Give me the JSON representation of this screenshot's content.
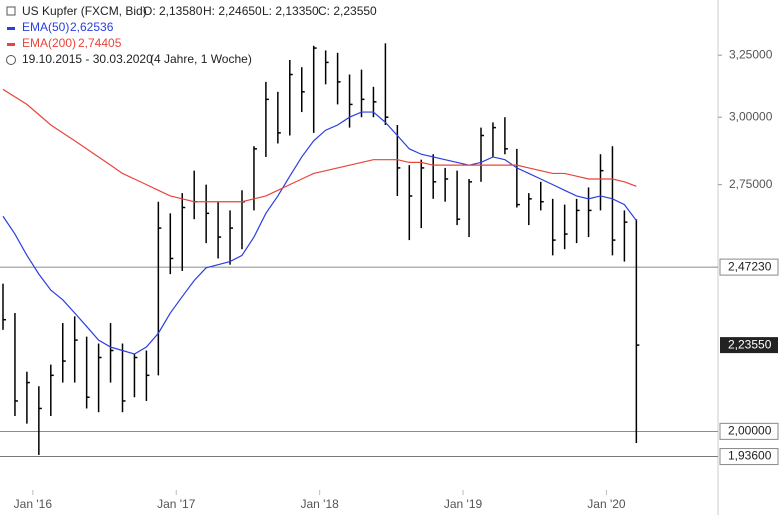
{
  "header": {
    "title": "US Kupfer (FXCM, Bid)",
    "open": "O: 2,13580",
    "high": "H: 2,24650",
    "low": "L: 2,13350",
    "close": "C: 2,23550",
    "range": "19.10.2015 - 30.03.2020",
    "span": "(4 Jahre, 1 Woche)"
  },
  "chart_data": {
    "type": "ohlc",
    "log_scale": true,
    "color": "#000000",
    "categories": [
      "2015-10",
      "2015-11",
      "2015-12",
      "2016-01",
      "2016-02",
      "2016-03",
      "2016-04",
      "2016-05",
      "2016-06",
      "2016-07",
      "2016-08",
      "2016-09",
      "2016-10",
      "2016-11",
      "2016-12",
      "2017-01",
      "2017-02",
      "2017-03",
      "2017-04",
      "2017-05",
      "2017-06",
      "2017-07",
      "2017-08",
      "2017-09",
      "2017-10",
      "2017-11",
      "2017-12",
      "2018-01",
      "2018-02",
      "2018-03",
      "2018-04",
      "2018-05",
      "2018-06",
      "2018-07",
      "2018-08",
      "2018-09",
      "2018-10",
      "2018-11",
      "2018-12",
      "2019-01",
      "2019-02",
      "2019-03",
      "2019-04",
      "2019-05",
      "2019-06",
      "2019-07",
      "2019-08",
      "2019-09",
      "2019-10",
      "2019-11",
      "2019-12",
      "2020-01",
      "2020-02",
      "2020-03"
    ],
    "high": [
      2.42,
      2.33,
      2.16,
      2.12,
      2.18,
      2.3,
      2.32,
      2.26,
      2.24,
      2.3,
      2.24,
      2.21,
      2.22,
      2.69,
      2.65,
      2.72,
      2.8,
      2.75,
      2.69,
      2.66,
      2.73,
      2.89,
      3.14,
      3.1,
      3.23,
      3.2,
      3.29,
      3.27,
      3.26,
      3.17,
      3.19,
      3.12,
      3.3,
      2.97,
      2.82,
      2.84,
      2.86,
      2.81,
      2.8,
      2.77,
      2.96,
      2.98,
      3.0,
      2.88,
      2.72,
      2.76,
      2.7,
      2.68,
      2.7,
      2.74,
      2.86,
      2.89,
      2.66,
      2.63
    ],
    "low": [
      2.28,
      2.04,
      2.02,
      1.94,
      2.04,
      2.13,
      2.13,
      2.06,
      2.05,
      2.13,
      2.05,
      2.09,
      2.08,
      2.15,
      2.45,
      2.46,
      2.63,
      2.55,
      2.5,
      2.48,
      2.53,
      2.66,
      2.85,
      2.9,
      2.93,
      3.02,
      2.94,
      3.13,
      3.05,
      2.96,
      3.0,
      3.0,
      2.97,
      2.71,
      2.56,
      2.6,
      2.7,
      2.69,
      2.61,
      2.57,
      2.76,
      2.85,
      2.86,
      2.67,
      2.61,
      2.66,
      2.51,
      2.53,
      2.55,
      2.57,
      2.66,
      2.51,
      2.49,
      1.97
    ],
    "close": [
      2.31,
      2.08,
      2.13,
      2.06,
      2.15,
      2.19,
      2.25,
      2.09,
      2.2,
      2.22,
      2.08,
      2.2,
      2.15,
      2.6,
      2.5,
      2.67,
      2.69,
      2.65,
      2.57,
      2.6,
      2.69,
      2.88,
      3.07,
      2.94,
      3.17,
      3.1,
      3.28,
      3.22,
      3.14,
      3.05,
      3.07,
      3.06,
      3.0,
      2.81,
      2.71,
      2.81,
      2.76,
      2.77,
      2.63,
      2.76,
      2.93,
      2.96,
      2.88,
      2.68,
      2.7,
      2.69,
      2.56,
      2.58,
      2.66,
      2.66,
      2.8,
      2.56,
      2.62,
      2.2355
    ],
    "series": [
      {
        "name": "EMA(50)",
        "color": "#2a3fe0",
        "value_label": "2,62536",
        "values": [
          2.64,
          2.58,
          2.51,
          2.45,
          2.4,
          2.37,
          2.33,
          2.29,
          2.25,
          2.23,
          2.22,
          2.21,
          2.23,
          2.27,
          2.33,
          2.38,
          2.43,
          2.47,
          2.48,
          2.49,
          2.51,
          2.57,
          2.65,
          2.71,
          2.78,
          2.85,
          2.91,
          2.95,
          2.97,
          3.0,
          3.02,
          3.02,
          2.98,
          2.93,
          2.88,
          2.86,
          2.85,
          2.84,
          2.83,
          2.82,
          2.83,
          2.85,
          2.84,
          2.81,
          2.79,
          2.77,
          2.75,
          2.73,
          2.71,
          2.7,
          2.71,
          2.7,
          2.68,
          2.62536
        ]
      },
      {
        "name": "EMA(200)",
        "color": "#e8453c",
        "value_label": "2,74405",
        "values": [
          3.11,
          3.08,
          3.05,
          3.01,
          2.97,
          2.94,
          2.91,
          2.88,
          2.85,
          2.82,
          2.79,
          2.77,
          2.75,
          2.73,
          2.71,
          2.7,
          2.69,
          2.69,
          2.69,
          2.69,
          2.69,
          2.7,
          2.71,
          2.73,
          2.75,
          2.77,
          2.79,
          2.8,
          2.81,
          2.82,
          2.83,
          2.84,
          2.84,
          2.84,
          2.83,
          2.83,
          2.82,
          2.82,
          2.82,
          2.82,
          2.82,
          2.82,
          2.82,
          2.82,
          2.81,
          2.8,
          2.79,
          2.79,
          2.78,
          2.77,
          2.77,
          2.77,
          2.76,
          2.74405
        ]
      }
    ],
    "ylim": [
      1.915,
      3.49
    ],
    "yticks": [
      {
        "value": 3.25,
        "label": "3,25000"
      },
      {
        "value": 3.0,
        "label": "3,00000"
      },
      {
        "value": 2.75,
        "label": "2,75000"
      }
    ],
    "xticks": [
      {
        "value": "2016-01",
        "label": "Jan '16"
      },
      {
        "value": "2017-01",
        "label": "Jan '17"
      },
      {
        "value": "2018-01",
        "label": "Jan '18"
      },
      {
        "value": "2019-01",
        "label": "Jan '19"
      },
      {
        "value": "2020-01",
        "label": "Jan '20"
      }
    ],
    "levels": [
      {
        "value": 2.4723,
        "label": "2,47230"
      },
      {
        "value": 2.0,
        "label": "2,00000"
      },
      {
        "value": 1.936,
        "label": "1,93600"
      }
    ],
    "last_price": {
      "value": 2.2355,
      "label": "2,23550"
    }
  }
}
